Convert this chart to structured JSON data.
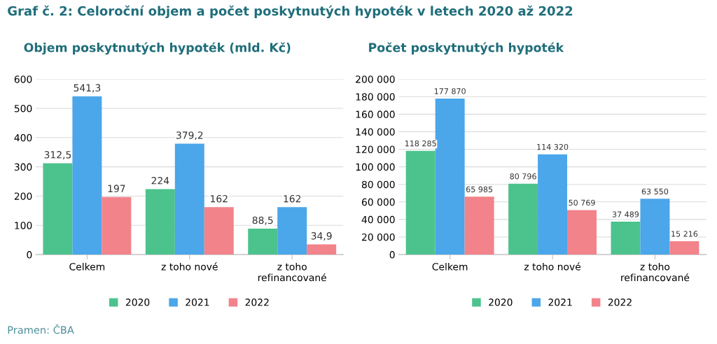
{
  "chart_data": [
    {
      "type": "bar",
      "title": "Graf č. 2: Celoroční objem a počet poskytnutých hypoték v letech 2020 až 2022",
      "subtitle": "Objem poskytnutých hypoték (mld. Kč)",
      "categories": [
        "Celkem",
        "z toho nové",
        "z toho\nrefinancované"
      ],
      "series": [
        {
          "name": "2020",
          "color": "#4cc38c",
          "values": [
            312.5,
            224,
            88.5
          ],
          "value_labels": [
            "312,5",
            "224",
            "88,5"
          ]
        },
        {
          "name": "2021",
          "color": "#4ba6ea",
          "values": [
            541.3,
            379.2,
            162
          ],
          "value_labels": [
            "541,3",
            "379,2",
            "162"
          ]
        },
        {
          "name": "2022",
          "color": "#f2838b",
          "values": [
            197,
            162,
            34.9
          ],
          "value_labels": [
            "197",
            "162",
            "34,9"
          ]
        }
      ],
      "ylim": [
        0,
        600
      ],
      "yticks": [
        0,
        100,
        200,
        300,
        400,
        500,
        600
      ],
      "grid": "y",
      "legend": "bottom",
      "annotations": [
        "Pramen: ČBA"
      ]
    },
    {
      "type": "bar",
      "title": "Počet poskytnutých hypoték",
      "categories": [
        "Celkem",
        "z toho nové",
        "z toho\nrefinancované"
      ],
      "series": [
        {
          "name": "2020",
          "color": "#4cc38c",
          "values": [
            118285,
            80796,
            37489
          ],
          "value_labels": [
            "118 285",
            "80 796",
            "37 489"
          ]
        },
        {
          "name": "2021",
          "color": "#4ba6ea",
          "values": [
            177870,
            114320,
            63550
          ],
          "value_labels": [
            "177 870",
            "114 320",
            "63 550"
          ]
        },
        {
          "name": "2022",
          "color": "#f2838b",
          "values": [
            65985,
            50769,
            15216
          ],
          "value_labels": [
            "65 985",
            "50 769",
            "15 216"
          ]
        }
      ],
      "ylim": [
        0,
        200000
      ],
      "yticks": [
        0,
        {
          "value": 20000,
          "label": "20 000"
        },
        {
          "value": 40000,
          "label": "40 000"
        },
        {
          "value": 60000,
          "label": "60 000"
        },
        {
          "value": 80000,
          "label": "80 000"
        },
        {
          "value": 100000,
          "label": "100 000"
        },
        {
          "value": 120000,
          "label": "120 000"
        },
        {
          "value": 140000,
          "label": "140 000"
        },
        {
          "value": 160000,
          "label": "160 000"
        },
        {
          "value": 180000,
          "label": "180 000"
        },
        {
          "value": 200000,
          "label": "200 000"
        }
      ],
      "grid": "y",
      "legend": "bottom"
    }
  ]
}
